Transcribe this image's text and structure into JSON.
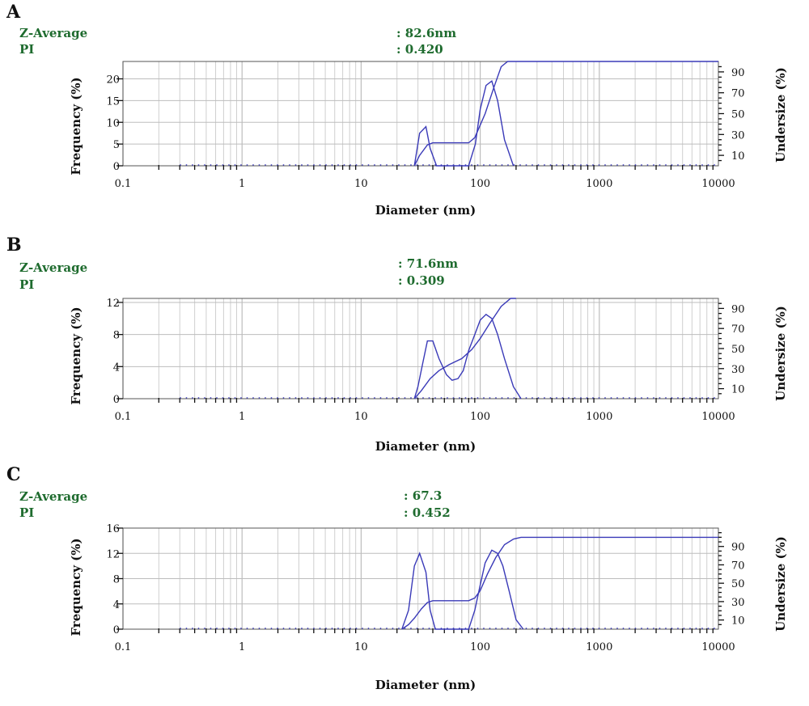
{
  "panels": [
    {
      "letter": "A",
      "z_average_label": "Z-Average",
      "z_average_value": ": 82.6nm",
      "pi_label": "PI",
      "pi_value": ": 0.420",
      "xlabel": "Diameter (nm)",
      "ylabel_left": "Frequency (%)",
      "ylabel_right": "Undersize (%)"
    },
    {
      "letter": "B",
      "z_average_label": "Z-Average",
      "z_average_value": ": 71.6nm",
      "pi_label": "PI",
      "pi_value": ": 0.309",
      "xlabel": "Diameter (nm)",
      "ylabel_left": "Frequency (%)",
      "ylabel_right": "Undersize (%)"
    },
    {
      "letter": "C",
      "z_average_label": "Z-Average",
      "z_average_value": ": 67.3",
      "pi_label": "PI",
      "pi_value": ": 0.452",
      "xlabel": "Diameter (nm)",
      "ylabel_left": "Frequency (%)",
      "ylabel_right": "Undersize (%)"
    }
  ],
  "chart_data": [
    {
      "type": "line",
      "xscale": "log",
      "xlim": [
        0.1,
        10000
      ],
      "x_ticks": [
        0.1,
        1,
        10,
        100,
        1000,
        10000
      ],
      "x_tick_labels": [
        "0.1",
        "1",
        "10",
        "100",
        "1000",
        "10000"
      ],
      "ylim_left": [
        0,
        24
      ],
      "y_ticks_left": [
        0,
        5,
        10,
        15,
        20
      ],
      "y_tick_labels_left": [
        "0",
        "5",
        "10",
        "15",
        "20"
      ],
      "ylim_right": [
        0,
        100
      ],
      "y_ticks_right": [
        10,
        30,
        50,
        70,
        90
      ],
      "y_tick_labels_right": [
        "10",
        "30",
        "50",
        "70",
        "90"
      ],
      "grid": true,
      "series": [
        {
          "axis": "left",
          "x": [
            28,
            31,
            35,
            38,
            43,
            80,
            91,
            100,
            112,
            125,
            140,
            160,
            190
          ],
          "y": [
            0,
            7.5,
            9,
            4,
            0,
            0,
            5,
            13,
            18.5,
            19.5,
            15,
            6,
            0
          ]
        },
        {
          "axis": "right",
          "x": [
            28,
            31,
            36,
            40,
            50,
            60,
            70,
            80,
            90,
            110,
            130,
            150,
            170,
            10000
          ],
          "y": [
            0,
            10,
            20,
            22,
            22,
            22,
            22,
            22,
            27,
            50,
            75,
            95,
            100,
            100
          ]
        }
      ]
    },
    {
      "type": "line",
      "xscale": "log",
      "xlim": [
        0.1,
        10000
      ],
      "x_ticks": [
        0.1,
        1,
        10,
        100,
        1000,
        10000
      ],
      "x_tick_labels": [
        "0.1",
        "1",
        "10",
        "100",
        "1000",
        "10000"
      ],
      "ylim_left": [
        0,
        12.5
      ],
      "y_ticks_left": [
        0,
        4,
        8,
        12
      ],
      "y_tick_labels_left": [
        "0",
        "4",
        "8",
        "12"
      ],
      "ylim_right": [
        0,
        100
      ],
      "y_ticks_right": [
        10,
        30,
        50,
        70,
        90
      ],
      "y_tick_labels_right": [
        "10",
        "30",
        "50",
        "70",
        "90"
      ],
      "grid": true,
      "series": [
        {
          "axis": "left",
          "x": [
            28,
            30,
            33,
            36,
            40,
            45,
            52,
            58,
            65,
            72,
            80,
            90,
            100,
            112,
            125,
            140,
            160,
            190,
            220
          ],
          "y": [
            0,
            1.5,
            4.5,
            7.2,
            7.2,
            5,
            3,
            2.3,
            2.5,
            3.5,
            6,
            8,
            9.8,
            10.5,
            10,
            8,
            5,
            1.5,
            0
          ]
        },
        {
          "axis": "right",
          "x": [
            28,
            32,
            38,
            45,
            55,
            70,
            85,
            100,
            120,
            150,
            180,
            200
          ],
          "y": [
            0,
            8,
            20,
            28,
            34,
            40,
            49,
            60,
            75,
            92,
            100,
            100
          ]
        }
      ]
    },
    {
      "type": "line",
      "xscale": "log",
      "xlim": [
        0.1,
        10000
      ],
      "x_ticks": [
        0.1,
        1,
        10,
        100,
        1000,
        10000
      ],
      "x_tick_labels": [
        "0.1",
        "1",
        "10",
        "100",
        "1000",
        "10000"
      ],
      "ylim_left": [
        0,
        16
      ],
      "y_ticks_left": [
        0,
        4,
        8,
        12,
        16
      ],
      "y_tick_labels_left": [
        "0",
        "4",
        "8",
        "12",
        "16"
      ],
      "ylim_right": [
        0,
        110
      ],
      "y_ticks_right": [
        10,
        30,
        50,
        70,
        90
      ],
      "y_tick_labels_right": [
        "10",
        "30",
        "50",
        "70",
        "90"
      ],
      "grid": true,
      "series": [
        {
          "axis": "left",
          "x": [
            22,
            25,
            28,
            31,
            35,
            38,
            42,
            80,
            90,
            100,
            110,
            125,
            140,
            155,
            175,
            200,
            230
          ],
          "y": [
            0,
            3,
            10,
            12,
            9,
            3,
            0,
            0,
            3,
            7,
            10.5,
            12.5,
            12,
            10,
            6,
            1.5,
            0
          ]
        },
        {
          "axis": "right",
          "x": [
            22,
            25,
            28,
            32,
            36,
            40,
            45,
            60,
            80,
            90,
            100,
            115,
            135,
            160,
            190,
            220,
            10000
          ],
          "y": [
            0,
            5,
            12,
            22,
            29,
            31,
            31,
            31,
            31,
            34,
            42,
            60,
            78,
            92,
            98,
            100,
            100
          ]
        }
      ]
    }
  ]
}
